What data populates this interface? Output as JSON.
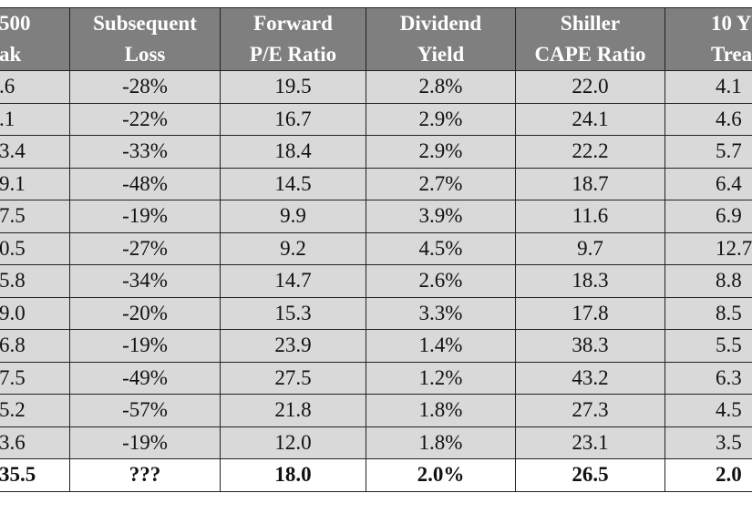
{
  "table": {
    "header": [
      [
        "500",
        "ak"
      ],
      [
        "Subsequent",
        "Loss"
      ],
      [
        "Forward",
        "P/E Ratio"
      ],
      [
        "Dividend",
        "Yield"
      ],
      [
        "Shiller",
        "CAPE Ratio"
      ],
      [
        "10 Y",
        "Treasur"
      ]
    ],
    "rows": [
      [
        ".6",
        "-28%",
        "19.5",
        "2.8%",
        "22.0",
        "4.1"
      ],
      [
        ".1",
        "-22%",
        "16.7",
        "2.9%",
        "24.1",
        "4.6"
      ],
      [
        "3.4",
        "-33%",
        "18.4",
        "2.9%",
        "22.2",
        "5.7"
      ],
      [
        "9.1",
        "-48%",
        "14.5",
        "2.7%",
        "18.7",
        "6.4"
      ],
      [
        "7.5",
        "-19%",
        "9.9",
        "3.9%",
        "11.6",
        "6.9"
      ],
      [
        "0.5",
        "-27%",
        "9.2",
        "4.5%",
        "9.7",
        "12.7"
      ],
      [
        "5.8",
        "-34%",
        "14.7",
        "2.6%",
        "18.3",
        "8.8"
      ],
      [
        "9.0",
        "-20%",
        "15.3",
        "3.3%",
        "17.8",
        "8.5"
      ],
      [
        "6.8",
        "-19%",
        "23.9",
        "1.4%",
        "38.3",
        "5.5"
      ],
      [
        "7.5",
        "-49%",
        "27.5",
        "1.2%",
        "43.2",
        "6.3"
      ],
      [
        "5.2",
        "-57%",
        "21.8",
        "1.8%",
        "27.3",
        "4.5"
      ],
      [
        "3.6",
        "-19%",
        "12.0",
        "1.8%",
        "23.1",
        "3.5"
      ]
    ],
    "current": [
      "35.5",
      "???",
      "18.0",
      "2.0%",
      "26.5",
      "2.0"
    ]
  }
}
